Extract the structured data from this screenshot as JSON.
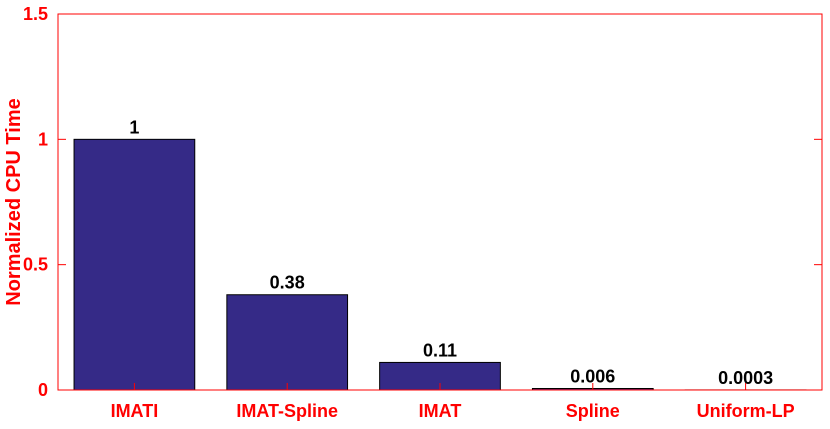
{
  "chart_data": {
    "type": "bar",
    "title": "",
    "xlabel": "",
    "ylabel": "Normalized CPU Time",
    "categories": [
      "IMATI",
      "IMAT-Spline",
      "IMAT",
      "Spline",
      "Uniform-LP"
    ],
    "values": [
      1,
      0.38,
      0.11,
      0.006,
      0.0003
    ],
    "data_labels": [
      "1",
      "0.38",
      "0.11",
      "0.006",
      "0.0003"
    ],
    "ylim": [
      0,
      1.5
    ],
    "yticks": [
      0,
      0.5,
      1,
      1.5
    ],
    "ytick_labels": [
      "0",
      "0.5",
      "1",
      "1.5"
    ],
    "grid": false,
    "legend": "none",
    "colors": {
      "bar": "#352a87",
      "axis": "#ff0000",
      "text": "#ff0000",
      "data_label": "#000000"
    }
  }
}
